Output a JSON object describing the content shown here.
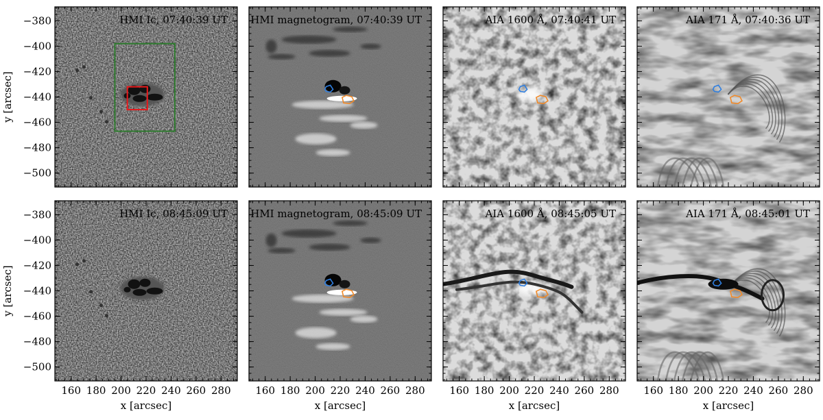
{
  "figure": {
    "y_axis_label": "y [arcsec]",
    "x_axis_label": "x [arcsec]",
    "y_ticks": [
      -380,
      -400,
      -420,
      -440,
      -460,
      -480,
      -500
    ],
    "x_ticks": [
      160,
      180,
      200,
      220,
      240,
      260,
      280
    ],
    "x_range": [
      147,
      293
    ],
    "y_range": [
      -511,
      -369
    ],
    "colors": {
      "green_box": "#2d7a2d",
      "red_box": "#e8191c",
      "blue_contour": "#2f7fe0",
      "orange_contour": "#f08a2a"
    }
  },
  "panels": [
    {
      "title": "HMI Ic, 07:40:39 UT",
      "type": "ic",
      "row": 0,
      "col": 0
    },
    {
      "title": "HMI magnetogram, 07:40:39 UT",
      "type": "mag",
      "row": 0,
      "col": 1
    },
    {
      "title": "AIA 1600 Å, 07:40:41 UT",
      "type": "a1600",
      "row": 0,
      "col": 2
    },
    {
      "title": "AIA 171 Å, 07:40:36 UT",
      "type": "a171",
      "row": 0,
      "col": 3
    },
    {
      "title": "HMI Ic, 08:45:09 UT",
      "type": "ic",
      "row": 1,
      "col": 0
    },
    {
      "title": "HMI magnetogram, 08:45:09 UT",
      "type": "mag",
      "row": 1,
      "col": 1
    },
    {
      "title": "AIA 1600 Å, 08:45:05 UT",
      "type": "a1600",
      "row": 1,
      "col": 2,
      "flare": true
    },
    {
      "title": "AIA 171 Å, 08:45:01 UT",
      "type": "a171",
      "row": 1,
      "col": 3,
      "flare": true
    }
  ],
  "annotations": {
    "green_box": {
      "x": [
        195,
        243
      ],
      "y": [
        -398,
        -467
      ]
    },
    "red_box": {
      "x": [
        205,
        221
      ],
      "y": [
        -432,
        -450
      ]
    },
    "blue_contour_center": [
      211,
      -434
    ],
    "orange_contour_center": [
      226,
      -442
    ]
  }
}
